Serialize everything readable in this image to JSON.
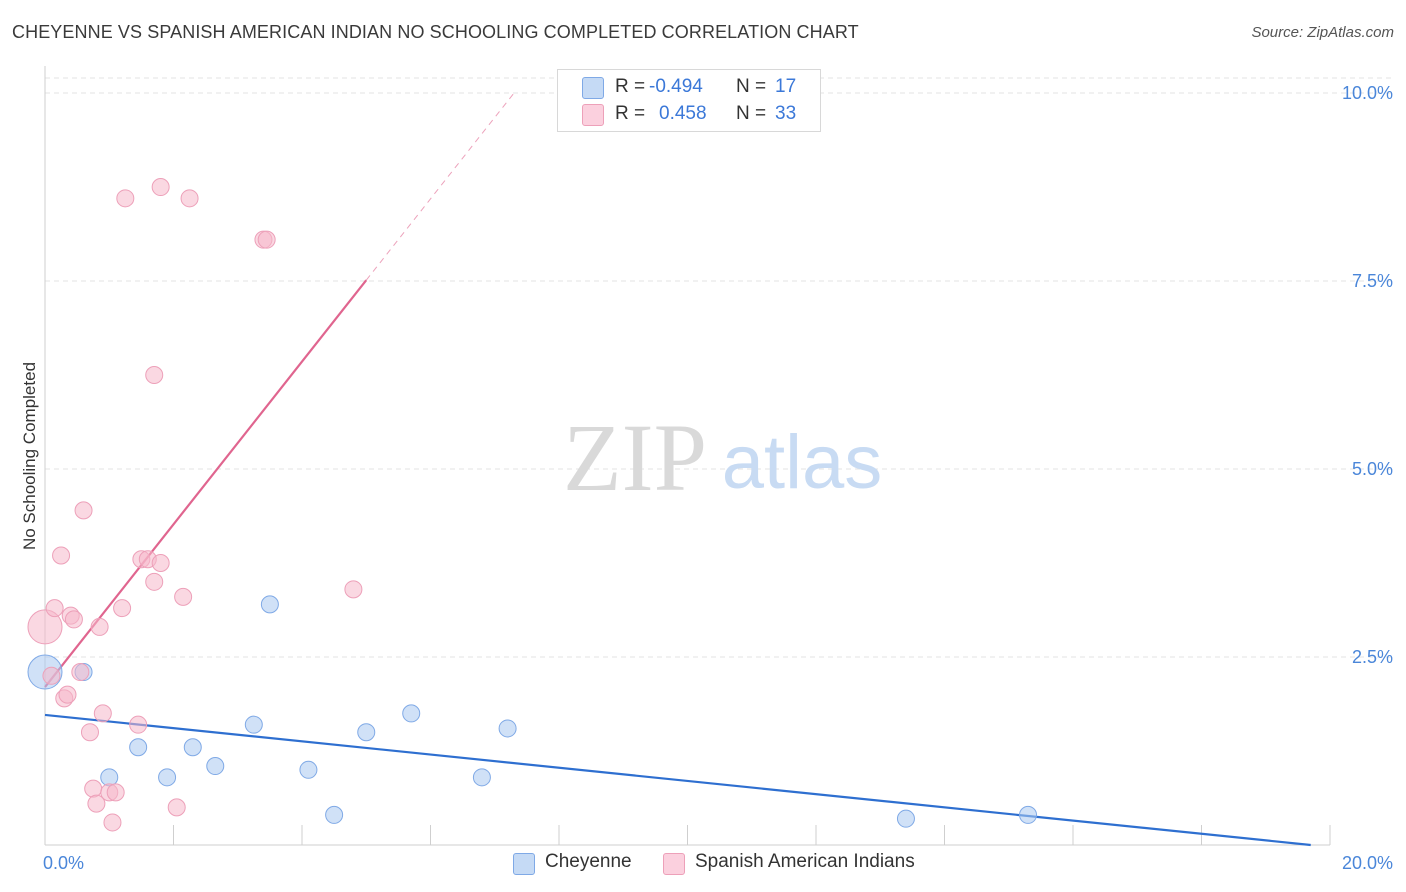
{
  "header": {
    "title": "CHEYENNE VS SPANISH AMERICAN INDIAN NO SCHOOLING COMPLETED CORRELATION CHART",
    "source": "Source: ZipAtlas.com"
  },
  "watermark": {
    "zip": "ZIP",
    "atlas": "atlas"
  },
  "legend": {
    "rows": [
      {
        "r_label": "R =",
        "r_value": "-0.494",
        "n_label": "N =",
        "n_value": "17",
        "color": "#a9c8f0"
      },
      {
        "r_label": "R =",
        "r_value": "0.458",
        "n_label": "N =",
        "n_value": "33",
        "color": "#f5b8cb"
      }
    ]
  },
  "chart_data": {
    "type": "scatter",
    "title": "CHEYENNE VS SPANISH AMERICAN INDIAN NO SCHOOLING COMPLETED CORRELATION CHART",
    "xlabel": "",
    "ylabel": "No Schooling Completed",
    "xlim": [
      0,
      20
    ],
    "ylim": [
      0,
      10.2
    ],
    "x_tick_labels": [
      {
        "value": 0,
        "label": "0.0%"
      },
      {
        "value": 20,
        "label": "20.0%"
      }
    ],
    "y_tick_labels": [
      {
        "value": 2.5,
        "label": "2.5%"
      },
      {
        "value": 5.0,
        "label": "5.0%"
      },
      {
        "value": 7.5,
        "label": "7.5%"
      },
      {
        "value": 10.0,
        "label": "10.0%"
      }
    ],
    "grid": true,
    "legend_position": "bottom",
    "series": [
      {
        "name": "Cheyenne",
        "color": "#a9c8f0",
        "line_color": "#2e6fd0",
        "points": [
          [
            0.0,
            2.3,
            3
          ],
          [
            0.6,
            2.3,
            1
          ],
          [
            1.0,
            0.9,
            1
          ],
          [
            1.45,
            1.3,
            1
          ],
          [
            1.9,
            0.9,
            1
          ],
          [
            2.3,
            1.3,
            1
          ],
          [
            2.65,
            1.05,
            1
          ],
          [
            3.25,
            1.6,
            1
          ],
          [
            3.5,
            3.2,
            1
          ],
          [
            4.1,
            1.0,
            1
          ],
          [
            4.5,
            0.4,
            1
          ],
          [
            5.0,
            1.5,
            1
          ],
          [
            5.7,
            1.75,
            1
          ],
          [
            6.8,
            0.9,
            1
          ],
          [
            7.2,
            1.55,
            1
          ],
          [
            13.4,
            0.35,
            1
          ],
          [
            15.3,
            0.4,
            1
          ]
        ],
        "trend": {
          "x": [
            0.0,
            19.7
          ],
          "y": [
            1.73,
            0.0
          ],
          "solid_to": 19.7
        }
      },
      {
        "name": "Spanish American Indians",
        "color": "#f5b8cb",
        "line_color": "#e0658f",
        "points": [
          [
            0.0,
            2.9,
            3
          ],
          [
            0.1,
            2.25,
            1
          ],
          [
            0.15,
            3.15,
            1
          ],
          [
            0.25,
            3.85,
            1
          ],
          [
            0.3,
            1.95,
            1
          ],
          [
            0.35,
            2.0,
            1
          ],
          [
            0.4,
            3.05,
            1
          ],
          [
            0.45,
            3.0,
            1
          ],
          [
            0.55,
            2.3,
            1
          ],
          [
            0.6,
            4.45,
            1
          ],
          [
            0.7,
            1.5,
            1
          ],
          [
            0.75,
            0.75,
            1
          ],
          [
            0.8,
            0.55,
            1
          ],
          [
            0.85,
            2.9,
            1
          ],
          [
            0.9,
            1.75,
            1
          ],
          [
            1.0,
            0.7,
            1
          ],
          [
            1.05,
            0.3,
            1
          ],
          [
            1.1,
            0.7,
            1
          ],
          [
            1.2,
            3.15,
            1
          ],
          [
            1.25,
            8.6,
            1
          ],
          [
            1.45,
            1.6,
            1
          ],
          [
            1.5,
            3.8,
            1
          ],
          [
            1.6,
            3.8,
            1
          ],
          [
            1.7,
            3.5,
            1
          ],
          [
            1.7,
            6.25,
            1
          ],
          [
            1.8,
            3.75,
            1
          ],
          [
            1.8,
            8.75,
            1
          ],
          [
            2.05,
            0.5,
            1
          ],
          [
            2.15,
            3.3,
            1
          ],
          [
            2.25,
            8.6,
            1
          ],
          [
            3.4,
            8.05,
            1
          ],
          [
            3.45,
            8.05,
            1
          ],
          [
            4.8,
            3.4,
            1
          ]
        ],
        "trend": {
          "x": [
            0.0,
            7.3
          ],
          "y": [
            2.1,
            10.0
          ],
          "solid_to": 5.0
        }
      }
    ]
  },
  "bottom_legend": [
    {
      "label": "Cheyenne",
      "color": "#a9c8f0"
    },
    {
      "label": "Spanish American Indians",
      "color": "#f5b8cb"
    }
  ]
}
